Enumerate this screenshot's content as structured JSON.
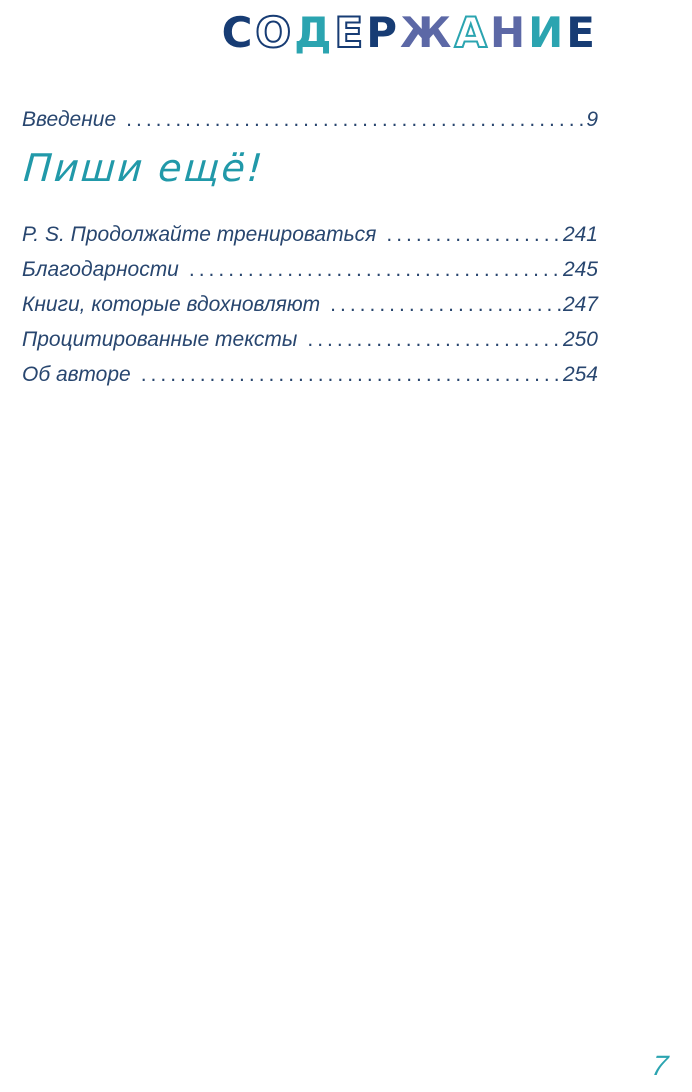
{
  "title": {
    "text": "СОДЕРЖАНИЕ",
    "letters": [
      {
        "ch": "С",
        "style": "solid-navy"
      },
      {
        "ch": "О",
        "style": "outline-navy"
      },
      {
        "ch": "Д",
        "style": "solid-teal"
      },
      {
        "ch": "Е",
        "style": "outline-navy"
      },
      {
        "ch": "Р",
        "style": "solid-navy"
      },
      {
        "ch": "Ж",
        "style": "solid-slate"
      },
      {
        "ch": "А",
        "style": "outline-teal"
      },
      {
        "ch": "Н",
        "style": "solid-slate"
      },
      {
        "ch": "И",
        "style": "solid-teal"
      },
      {
        "ch": "Е",
        "style": "solid-navy"
      }
    ]
  },
  "intro_entry": {
    "label": "Введение",
    "page": "9"
  },
  "section_heading": "Пиши ещё!",
  "entries": [
    {
      "label": "P. S. Продолжайте тренироваться",
      "page": "241"
    },
    {
      "label": "Благодарности",
      "page": "245"
    },
    {
      "label": "Книги, которые вдохновляют",
      "page": "247"
    },
    {
      "label": "Процитированные тексты",
      "page": "250"
    },
    {
      "label": "Об авторе",
      "page": "254"
    }
  ],
  "folio": "7",
  "colors": {
    "navy": "#173c74",
    "teal": "#2ba4b0",
    "slate": "#5c68a6",
    "text": "#28466f",
    "script": "#2199a9"
  }
}
